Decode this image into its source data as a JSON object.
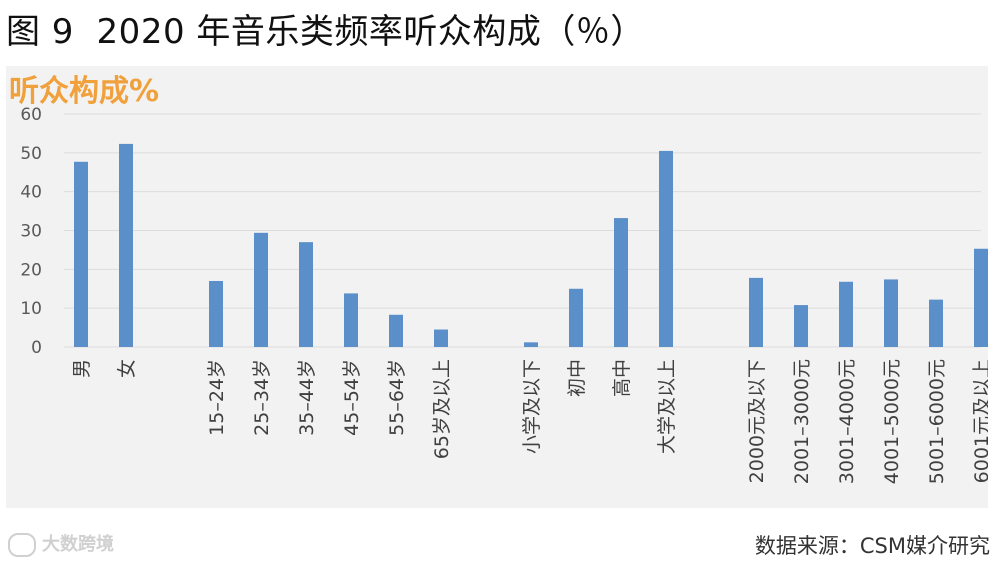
{
  "title": "图 9  2020 年音乐类频率听众构成（％）",
  "panel_title": "听众构成%",
  "source": "数据来源：CSM媒介研究",
  "watermark": "大数跨境",
  "chart_data": {
    "type": "bar",
    "title": "听众构成%",
    "xlabel": "",
    "ylabel": "",
    "ylim": [
      0,
      60
    ],
    "yticks": [
      0,
      10,
      20,
      30,
      40,
      50,
      60
    ],
    "grid": true,
    "legend": "none",
    "bar_color": "#5b8fc9",
    "groups": [
      {
        "categories": [
          "男",
          "女"
        ],
        "values": [
          47.7,
          52.3
        ]
      },
      {
        "categories": [
          "15–24岁",
          "25–34岁",
          "35–44岁",
          "45–54岁",
          "55–64岁",
          "65岁及以上"
        ],
        "values": [
          17.0,
          29.4,
          27.0,
          13.8,
          8.3,
          4.5
        ]
      },
      {
        "categories": [
          "小学及以下",
          "初中",
          "高中",
          "大学及以上"
        ],
        "values": [
          1.2,
          15.0,
          33.2,
          50.5
        ]
      },
      {
        "categories": [
          "2000元及以下",
          "2001–3000元",
          "3001–4000元",
          "4001–5000元",
          "5001–6000元",
          "6001元及以上"
        ],
        "values": [
          17.8,
          10.8,
          16.8,
          17.4,
          12.2,
          25.3
        ]
      }
    ]
  }
}
